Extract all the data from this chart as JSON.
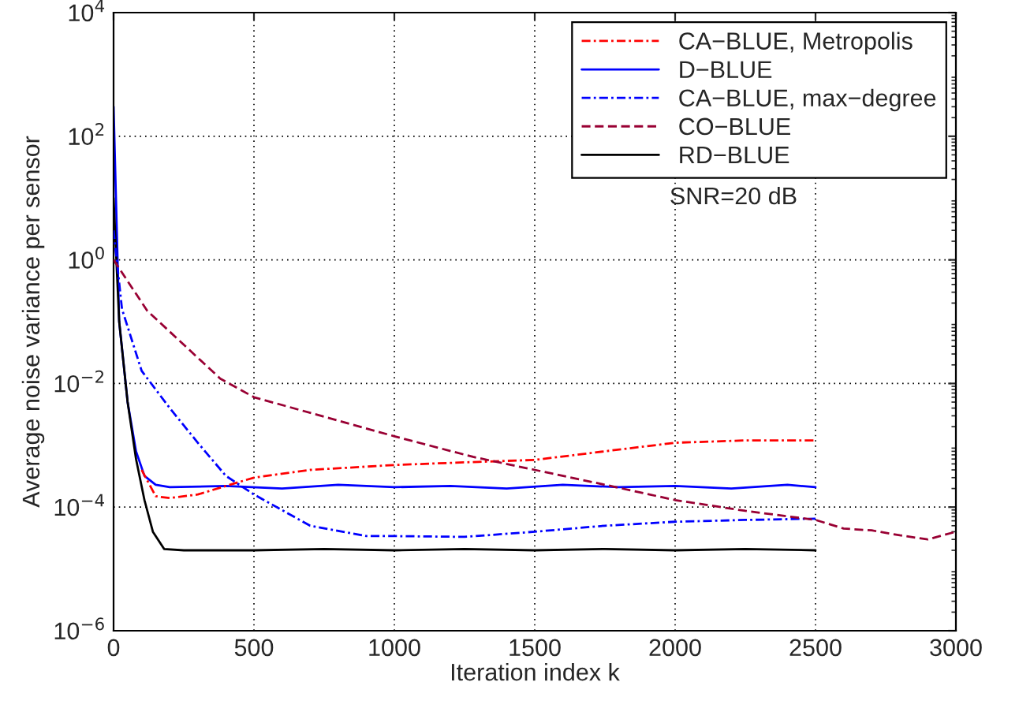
{
  "chart_data": {
    "type": "line",
    "xlabel": "Iteration index k",
    "ylabel": "Average noise variance per sensor",
    "log": "y",
    "xlim": [
      0,
      3000
    ],
    "ylim": [
      1e-06,
      10000.0
    ],
    "xticks": [
      0,
      500,
      1000,
      1500,
      2000,
      2500,
      3000
    ],
    "yticks": [
      {
        "value": 1e-06,
        "label": "10$^{−6}$"
      },
      {
        "value": 0.0001,
        "label": "10$^{−4}$"
      },
      {
        "value": 0.01,
        "label": "10$^{−2}$"
      },
      {
        "value": 1,
        "label": "10$^{0}$"
      },
      {
        "value": 100,
        "label": "10$^{2}$"
      },
      {
        "value": 10000.0,
        "label": "10$^{4}$"
      }
    ],
    "grid": true,
    "legend": "top right",
    "annotations": [
      "SNR=20 dB"
    ],
    "series": [
      {
        "name": "CA−BLUE, Metropolis",
        "color": "#ff0000",
        "line_style": "dashdot",
        "x": [
          100,
          150,
          200,
          300,
          400,
          500,
          700,
          1000,
          1300,
          1500,
          1750,
          2000,
          2250,
          2500
        ],
        "values": [
          0.0004,
          0.00015,
          0.00014,
          0.00016,
          0.00022,
          0.0003,
          0.0004,
          0.00048,
          0.00054,
          0.00058,
          0.0008,
          0.0011,
          0.0012,
          0.0012
        ]
      },
      {
        "name": "D−BLUE",
        "color": "#0000ff",
        "line_style": "solid",
        "x": [
          0,
          20,
          50,
          80,
          110,
          150,
          200,
          400,
          600,
          800,
          1000,
          1200,
          1400,
          1600,
          1800,
          2000,
          2200,
          2400,
          2500
        ],
        "values": [
          300,
          0.1,
          0.005,
          0.0008,
          0.00032,
          0.00023,
          0.00021,
          0.00022,
          0.0002,
          0.00023,
          0.00021,
          0.00022,
          0.0002,
          0.00023,
          0.00021,
          0.00022,
          0.0002,
          0.00023,
          0.00021
        ]
      },
      {
        "name": "CA−BLUE, max−degree",
        "color": "#0000ff",
        "line_style": "dashdot",
        "x": [
          0,
          30,
          100,
          200,
          300,
          400,
          500,
          700,
          900,
          1000,
          1250,
          1500,
          1750,
          2000,
          2250,
          2500
        ],
        "values": [
          3,
          0.16,
          0.016,
          0.004,
          0.0011,
          0.00032,
          0.00016,
          5e-05,
          3.4e-05,
          3.4e-05,
          3.3e-05,
          4e-05,
          5e-05,
          5.8e-05,
          6.2e-05,
          6.5e-05
        ]
      },
      {
        "name": "CO−BLUE",
        "color": "#990033",
        "line_style": "dashed",
        "x": [
          0,
          120,
          380,
          500,
          1000,
          1280,
          1500,
          1750,
          2000,
          2250,
          2500,
          2600,
          2700,
          2800,
          2900,
          3000
        ],
        "values": [
          1,
          0.15,
          0.012,
          0.006,
          0.0014,
          0.00065,
          0.0004,
          0.00023,
          0.00013,
          8.7e-05,
          6.2e-05,
          4.5e-05,
          4.2e-05,
          3.5e-05,
          3e-05,
          4e-05
        ]
      },
      {
        "name": "RD−BLUE",
        "color": "#000000",
        "line_style": "solid",
        "x": [
          0,
          20,
          50,
          80,
          110,
          140,
          180,
          250,
          500,
          750,
          1000,
          1250,
          1500,
          1750,
          2000,
          2250,
          2500
        ],
        "values": [
          10,
          0.1,
          0.005,
          0.0006,
          0.00013,
          4e-05,
          2.1e-05,
          2e-05,
          2e-05,
          2.1e-05,
          2e-05,
          2.1e-05,
          2e-05,
          2.1e-05,
          2e-05,
          2.1e-05,
          2e-05
        ]
      }
    ]
  }
}
